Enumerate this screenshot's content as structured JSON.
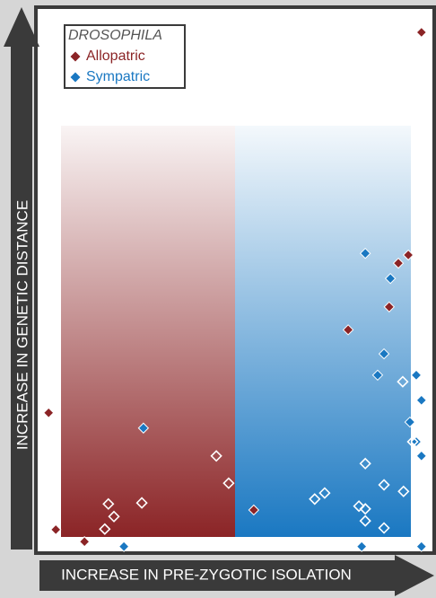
{
  "chart_data": {
    "type": "scatter",
    "title": "DROSOPHILA",
    "x_label": "INCREASE IN PRE-ZYGOTIC ISOLATION",
    "y_label": "INCREASE IN GENETIC DISTANCE",
    "xlim": [
      0,
      100
    ],
    "ylim": [
      0,
      100
    ],
    "series": [
      {
        "name": "Allopatric",
        "color": "#8b2426",
        "x": [
          96.8,
          93.5,
          91.0,
          88.7,
          78.4,
          3.2,
          5.0,
          12.2,
          54.7,
          45.3,
          48.4,
          18.2,
          26.6,
          19.6,
          17.3
        ],
        "values": [
          95.4,
          54.6,
          53.1,
          45.1,
          40.9,
          25.7,
          4.3,
          2.1,
          7.9,
          17.8,
          12.8,
          9.0,
          9.2,
          6.7,
          4.4
        ],
        "markers": [
          "filled",
          "filled",
          "filled",
          "filled",
          "filled",
          "filled",
          "filled",
          "filled",
          "filled",
          "open",
          "open",
          "open",
          "open",
          "open",
          "open"
        ]
      },
      {
        "name": "Sympatric",
        "color": "#1a78c2",
        "x": [
          82.7,
          89.0,
          87.4,
          95.5,
          85.8,
          96.8,
          93.9,
          95.5,
          96.8,
          27.0,
          22.1,
          81.8,
          96.8,
          92.1,
          94.6,
          82.7,
          87.4,
          72.5,
          70.0,
          92.3,
          96.8,
          81.1,
          82.7,
          82.7,
          87.4
        ],
        "values": [
          54.9,
          50.3,
          36.5,
          32.6,
          32.6,
          28.0,
          24.0,
          20.4,
          17.8,
          22.9,
          1.2,
          1.2,
          1.2,
          31.4,
          20.4,
          16.4,
          12.5,
          11.0,
          9.9,
          11.3,
          10.9,
          8.6,
          8.1,
          5.9,
          4.6
        ],
        "markers": [
          "filled",
          "filled",
          "filled",
          "filled",
          "filled",
          "filled",
          "filled",
          "filled",
          "filled",
          "filled",
          "filled",
          "filled",
          "filled",
          "open",
          "open",
          "open",
          "open",
          "open",
          "open",
          "open",
          "open",
          "open",
          "open",
          "open",
          "open"
        ]
      }
    ]
  }
}
